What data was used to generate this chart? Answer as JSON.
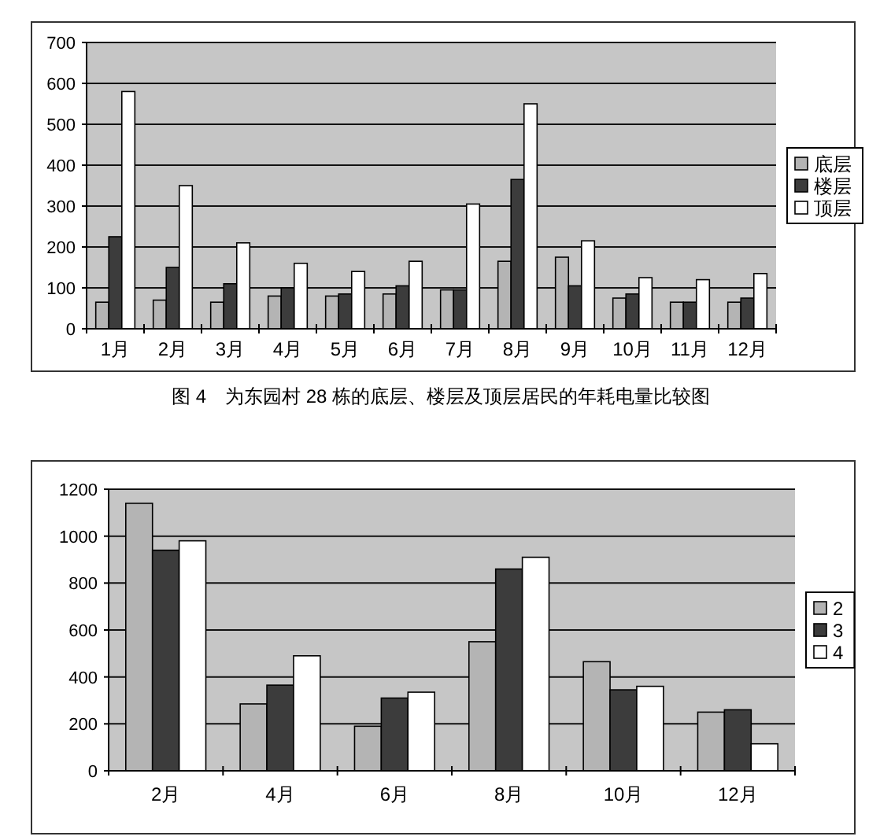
{
  "chart_data": [
    {
      "type": "bar",
      "categories": [
        "1月",
        "2月",
        "3月",
        "4月",
        "5月",
        "6月",
        "7月",
        "8月",
        "9月",
        "10月",
        "11月",
        "12月"
      ],
      "series": [
        {
          "name": "底层",
          "color": "#b4b4b4",
          "values": [
            65,
            70,
            65,
            80,
            80,
            85,
            95,
            165,
            175,
            75,
            65,
            65
          ]
        },
        {
          "name": "楼层",
          "color": "#3c3c3c",
          "values": [
            225,
            150,
            110,
            100,
            85,
            105,
            95,
            365,
            105,
            85,
            65,
            75
          ]
        },
        {
          "name": "顶层",
          "color": "#ffffff",
          "values": [
            580,
            350,
            210,
            160,
            140,
            165,
            305,
            550,
            215,
            125,
            120,
            135
          ]
        }
      ],
      "ylim": [
        0,
        700
      ],
      "yticks": [
        0,
        100,
        200,
        300,
        400,
        500,
        600,
        700
      ],
      "grid": "y",
      "legend": "right",
      "annotations": [
        "图 4　为东园村 28 栋的底层、楼层及顶层居民的年耗电量比较图"
      ]
    },
    {
      "type": "bar",
      "categories": [
        "2月",
        "4月",
        "6月",
        "8月",
        "10月",
        "12月"
      ],
      "series": [
        {
          "name": "2",
          "color": "#b4b4b4",
          "values": [
            1140,
            285,
            190,
            550,
            465,
            250
          ]
        },
        {
          "name": "3",
          "color": "#3c3c3c",
          "values": [
            940,
            365,
            310,
            860,
            345,
            260
          ]
        },
        {
          "name": "4",
          "color": "#ffffff",
          "values": [
            980,
            490,
            335,
            910,
            360,
            115
          ]
        }
      ],
      "ylim": [
        0,
        1200
      ],
      "yticks": [
        0,
        200,
        400,
        600,
        800,
        1000,
        1200
      ],
      "grid": "y",
      "legend": "right"
    }
  ]
}
